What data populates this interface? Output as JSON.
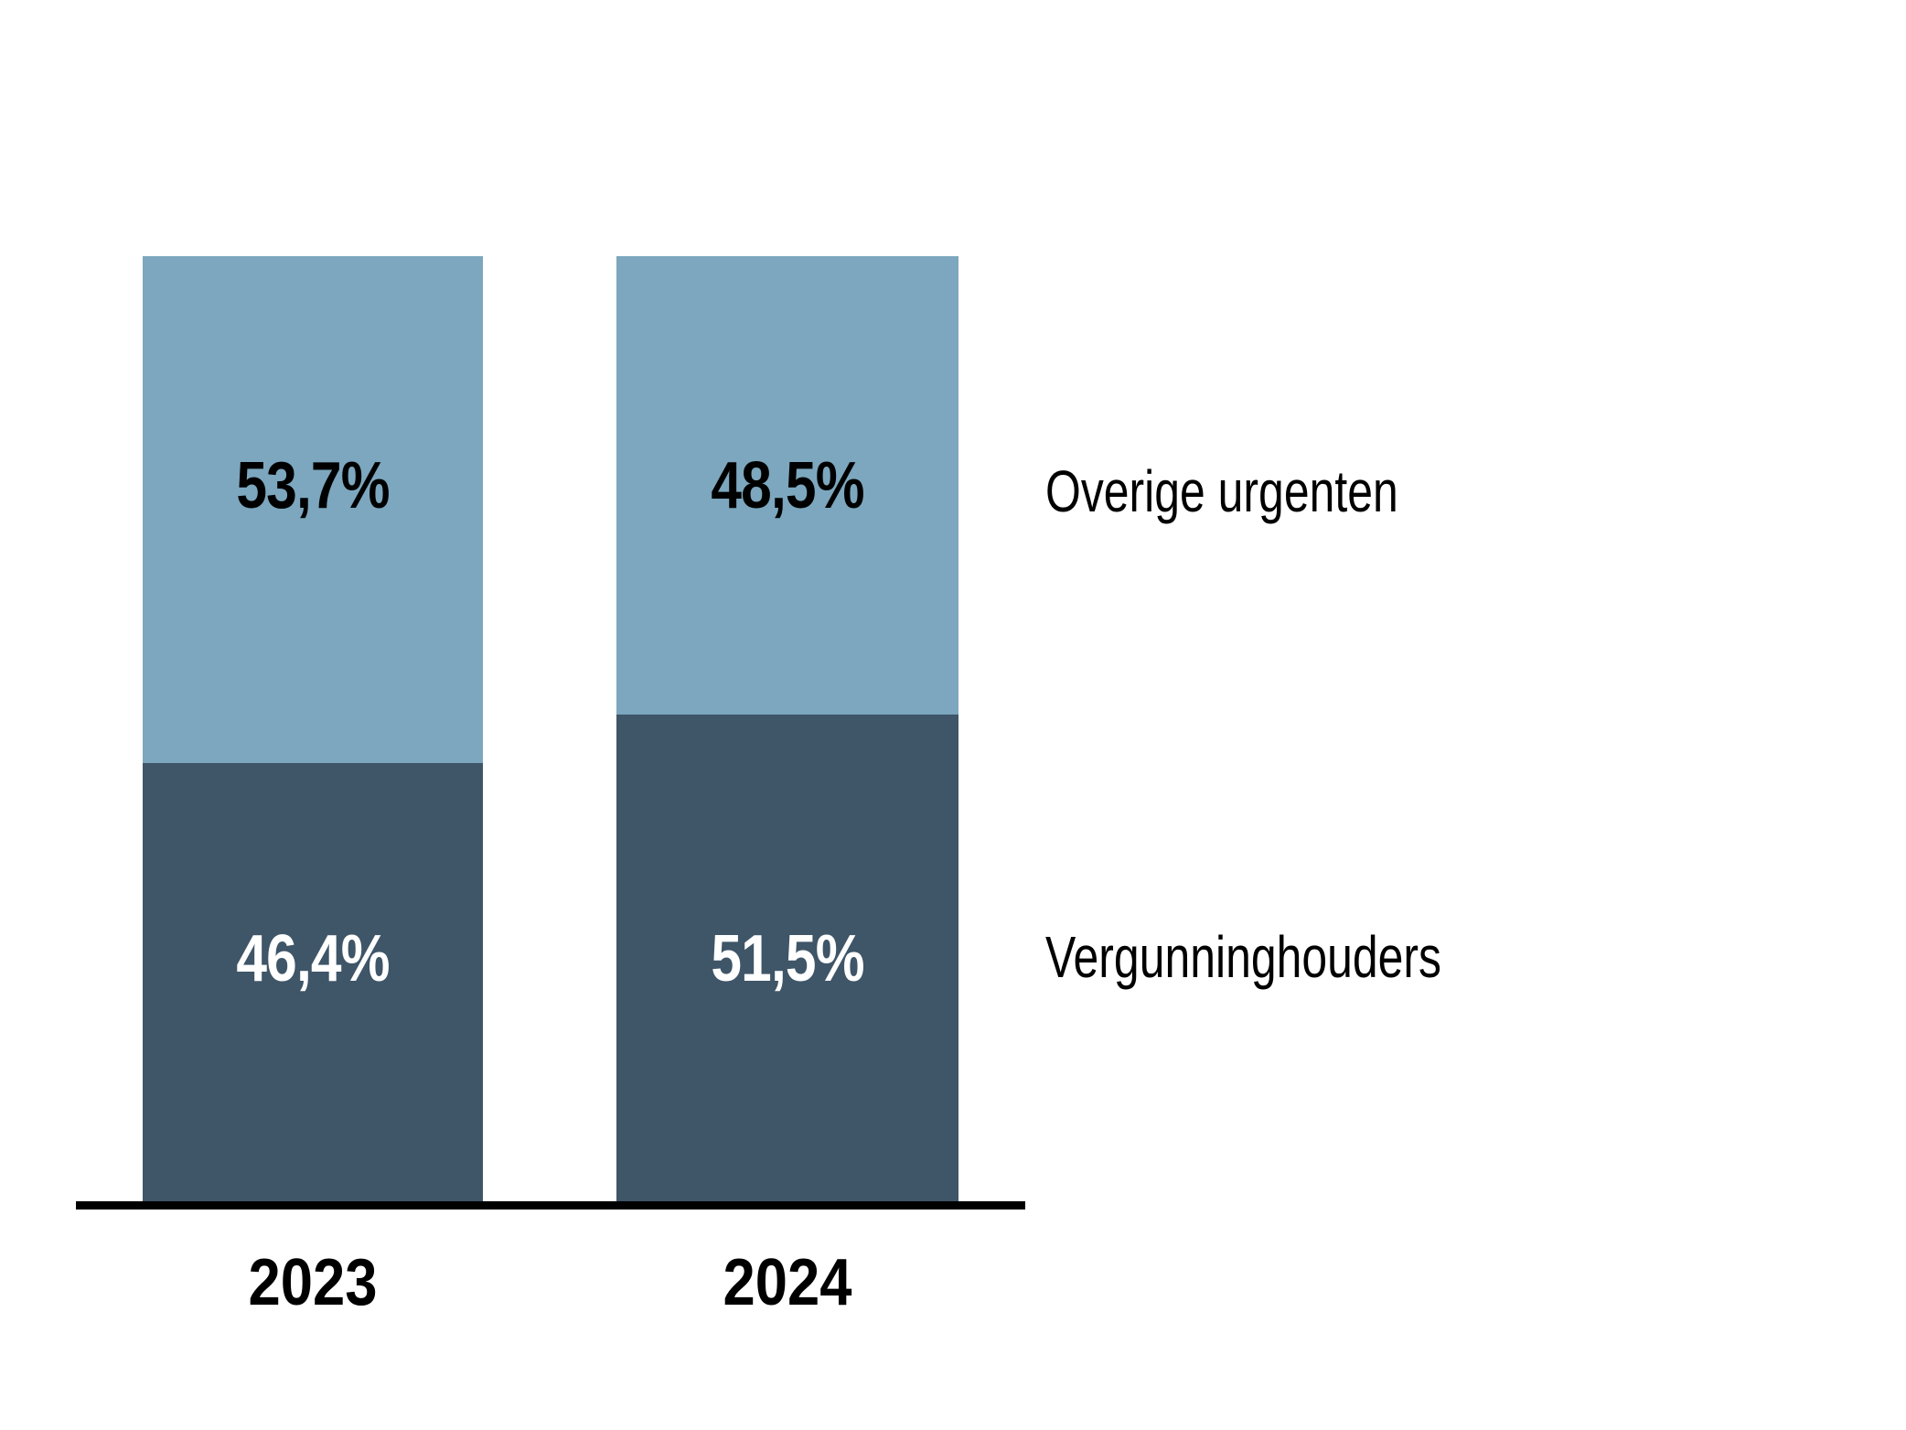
{
  "chart_data": {
    "type": "bar",
    "variant": "100-percent-stacked-column",
    "categories": [
      "2023",
      "2024"
    ],
    "series": [
      {
        "name": "Overige urgenten",
        "stack_position": "top",
        "values": [
          53.7,
          48.5
        ],
        "data_labels": [
          "53,7%",
          "48,5%"
        ],
        "color": "#7CA7BE",
        "data_label_color": "#000000"
      },
      {
        "name": "Vergunninghouders",
        "stack_position": "bottom",
        "values": [
          46.4,
          51.5
        ],
        "data_labels": [
          "46,4%",
          "51,5%"
        ],
        "color": "#3F5568",
        "data_label_color": "#FFFFFF"
      }
    ],
    "title": "",
    "xlabel": "",
    "ylabel": "",
    "ylim": [
      0,
      100
    ],
    "grid": false,
    "legend_position": "right-of-bars",
    "axis_line_color": "#000000",
    "background_color": "#FFFFFF"
  }
}
